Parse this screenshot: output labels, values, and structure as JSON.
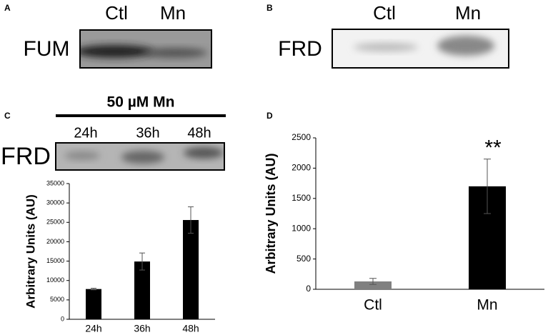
{
  "panels": {
    "A": {
      "label": "A",
      "protein": "FUM",
      "lanes": [
        "Ctl",
        "Mn"
      ]
    },
    "B": {
      "label": "B",
      "protein": "FRD",
      "lanes": [
        "Ctl",
        "Mn"
      ]
    },
    "C": {
      "label": "C",
      "treatment": "50 µM Mn",
      "protein": "FRD",
      "lanes": [
        "24h",
        "36h",
        "48h"
      ]
    },
    "D": {
      "label": "D"
    }
  },
  "chart_data": [
    {
      "type": "bar",
      "y_label": "Arbitrary Units (AU)",
      "categories": [
        "24h",
        "36h",
        "48h"
      ],
      "values": [
        7800,
        14900,
        25600
      ],
      "errors": [
        200,
        2200,
        3400
      ],
      "color": "#000000",
      "ylim": [
        0,
        35000
      ],
      "yticks": [
        0,
        5000,
        10000,
        15000,
        20000,
        25000,
        30000,
        35000
      ]
    },
    {
      "type": "bar",
      "y_label": "Arbitrary Units (AU)",
      "categories": [
        "Ctl",
        "Mn"
      ],
      "values": [
        130,
        1700
      ],
      "errors": [
        50,
        450
      ],
      "colors": [
        "#808080",
        "#000000"
      ],
      "ylim": [
        0,
        2500
      ],
      "yticks": [
        0,
        500,
        1000,
        1500,
        2000,
        2500
      ],
      "annotations": [
        "**"
      ]
    }
  ]
}
